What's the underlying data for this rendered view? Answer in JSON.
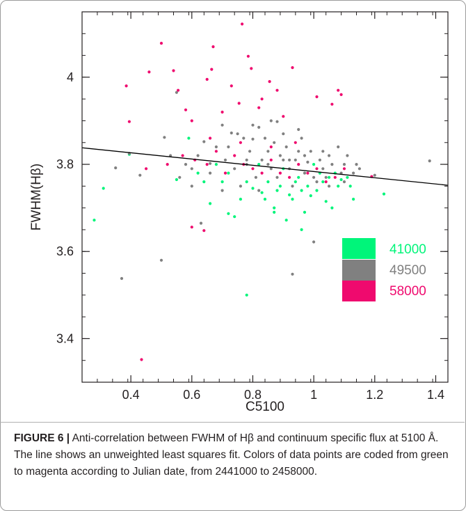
{
  "chart_data": {
    "type": "scatter",
    "xlabel": "C5100",
    "ylabel": "FWHM(Hβ)",
    "xlim": [
      0.24,
      1.44
    ],
    "ylim": [
      3.3,
      4.15
    ],
    "xticks": [
      "0.4",
      "0.6",
      "0.8",
      "1",
      "1.2",
      "1.4"
    ],
    "yticks": [
      "3.4",
      "3.6",
      "3.8",
      "4"
    ],
    "fit_line": {
      "x": [
        0.24,
        1.44
      ],
      "y": [
        3.838,
        3.752
      ]
    },
    "legend": {
      "placement": "lower-right",
      "entries": [
        {
          "label": "41000",
          "color": "#00f57a"
        },
        {
          "label": "49500",
          "color": "#808080"
        },
        {
          "label": "58000",
          "color": "#ef0a6e"
        }
      ]
    },
    "series": [
      {
        "color": "#00f57a",
        "points": [
          [
            0.28,
            3.672
          ],
          [
            0.31,
            3.745
          ],
          [
            0.395,
            3.823
          ],
          [
            0.55,
            3.765
          ],
          [
            0.59,
            3.86
          ],
          [
            0.72,
            3.687
          ],
          [
            0.78,
            3.5
          ],
          [
            0.83,
            3.735
          ],
          [
            0.87,
            3.69
          ],
          [
            0.91,
            3.672
          ],
          [
            0.96,
            3.65
          ],
          [
            0.99,
            3.728
          ],
          [
            1.04,
            3.715
          ],
          [
            1.09,
            3.765
          ],
          [
            1.13,
            3.72
          ],
          [
            1.23,
            3.732
          ],
          [
            0.66,
            3.71
          ],
          [
            0.74,
            3.68
          ],
          [
            0.76,
            3.72
          ],
          [
            0.8,
            3.745
          ],
          [
            0.85,
            3.76
          ],
          [
            0.88,
            3.74
          ],
          [
            0.93,
            3.72
          ],
          [
            0.95,
            3.77
          ],
          [
            0.97,
            3.69
          ],
          [
            1.01,
            3.74
          ],
          [
            1.06,
            3.7
          ],
          [
            1.08,
            3.75
          ],
          [
            1.11,
            3.77
          ],
          [
            0.7,
            3.76
          ],
          [
            0.68,
            3.8
          ],
          [
            0.72,
            3.78
          ],
          [
            0.82,
            3.8
          ],
          [
            0.9,
            3.79
          ],
          [
            0.94,
            3.76
          ],
          [
            1.02,
            3.78
          ],
          [
            1.05,
            3.77
          ],
          [
            0.62,
            3.78
          ],
          [
            0.64,
            3.76
          ],
          [
            0.87,
            3.7
          ],
          [
            0.92,
            3.73
          ],
          [
            0.98,
            3.75
          ],
          [
            1.0,
            3.8
          ],
          [
            1.03,
            3.76
          ],
          [
            0.78,
            3.76
          ],
          [
            0.84,
            3.72
          ],
          [
            0.89,
            3.75
          ],
          [
            0.96,
            3.74
          ],
          [
            1.07,
            3.78
          ],
          [
            1.12,
            3.75
          ]
        ]
      },
      {
        "color": "#808080",
        "points": [
          [
            0.35,
            3.792
          ],
          [
            0.37,
            3.538
          ],
          [
            0.395,
            3.825
          ],
          [
            0.43,
            3.775
          ],
          [
            0.5,
            3.58
          ],
          [
            0.51,
            3.862
          ],
          [
            0.55,
            3.965
          ],
          [
            0.63,
            3.665
          ],
          [
            0.64,
            3.852
          ],
          [
            0.66,
            3.802
          ],
          [
            0.7,
            3.89
          ],
          [
            0.73,
            3.872
          ],
          [
            0.78,
            3.8
          ],
          [
            0.8,
            3.858
          ],
          [
            0.82,
            3.885
          ],
          [
            0.85,
            3.83
          ],
          [
            0.88,
            3.898
          ],
          [
            0.9,
            3.81
          ],
          [
            0.93,
            3.548
          ],
          [
            0.95,
            3.83
          ],
          [
            0.98,
            3.805
          ],
          [
            1.0,
            3.622
          ],
          [
            1.03,
            3.79
          ],
          [
            1.05,
            3.82
          ],
          [
            1.1,
            3.8
          ],
          [
            1.15,
            3.79
          ],
          [
            1.2,
            3.775
          ],
          [
            1.38,
            3.808
          ],
          [
            0.6,
            3.79
          ],
          [
            0.62,
            3.82
          ],
          [
            0.68,
            3.84
          ],
          [
            0.71,
            3.81
          ],
          [
            0.74,
            3.79
          ],
          [
            0.77,
            3.86
          ],
          [
            0.79,
            3.83
          ],
          [
            0.81,
            3.77
          ],
          [
            0.83,
            3.81
          ],
          [
            0.84,
            3.86
          ],
          [
            0.86,
            3.79
          ],
          [
            0.87,
            3.85
          ],
          [
            0.89,
            3.82
          ],
          [
            0.91,
            3.84
          ],
          [
            0.92,
            3.79
          ],
          [
            0.94,
            3.81
          ],
          [
            0.96,
            3.86
          ],
          [
            0.97,
            3.78
          ],
          [
            0.99,
            3.83
          ],
          [
            1.01,
            3.76
          ],
          [
            1.02,
            3.81
          ],
          [
            1.04,
            3.77
          ],
          [
            1.06,
            3.8
          ],
          [
            1.08,
            3.84
          ],
          [
            1.09,
            3.78
          ],
          [
            1.11,
            3.82
          ],
          [
            1.13,
            3.78
          ],
          [
            1.14,
            3.8
          ],
          [
            0.75,
            3.87
          ],
          [
            0.8,
            3.89
          ],
          [
            0.86,
            3.9
          ],
          [
            0.9,
            3.87
          ],
          [
            0.95,
            3.88
          ],
          [
            0.72,
            3.84
          ],
          [
            0.66,
            3.78
          ],
          [
            0.58,
            3.8
          ],
          [
            0.56,
            3.77
          ],
          [
            0.53,
            3.82
          ],
          [
            0.6,
            3.75
          ],
          [
            0.7,
            3.74
          ],
          [
            0.76,
            3.75
          ],
          [
            0.82,
            3.74
          ],
          [
            0.88,
            3.77
          ],
          [
            0.93,
            3.75
          ],
          [
            1.0,
            3.77
          ],
          [
            1.05,
            3.75
          ],
          [
            1.1,
            3.76
          ],
          [
            0.78,
            3.81
          ],
          [
            0.85,
            3.8
          ],
          [
            0.92,
            3.81
          ],
          [
            0.97,
            3.82
          ],
          [
            1.03,
            3.83
          ]
        ]
      },
      {
        "color": "#ef0a6e",
        "points": [
          [
            0.385,
            3.98
          ],
          [
            0.395,
            3.898
          ],
          [
            0.435,
            3.352
          ],
          [
            0.46,
            4.012
          ],
          [
            0.5,
            4.078
          ],
          [
            0.54,
            4.015
          ],
          [
            0.555,
            3.97
          ],
          [
            0.58,
            3.925
          ],
          [
            0.6,
            3.656
          ],
          [
            0.64,
            3.648
          ],
          [
            0.65,
            3.995
          ],
          [
            0.665,
            4.018
          ],
          [
            0.67,
            4.07
          ],
          [
            0.73,
            3.98
          ],
          [
            0.755,
            3.94
          ],
          [
            0.765,
            4.122
          ],
          [
            0.785,
            4.048
          ],
          [
            0.795,
            4.02
          ],
          [
            0.83,
            3.95
          ],
          [
            0.855,
            3.99
          ],
          [
            0.88,
            3.97
          ],
          [
            0.93,
            4.022
          ],
          [
            1.01,
            3.955
          ],
          [
            1.06,
            3.938
          ],
          [
            1.08,
            3.97
          ],
          [
            1.09,
            3.96
          ],
          [
            1.19,
            3.772
          ],
          [
            0.45,
            3.79
          ],
          [
            0.52,
            3.8
          ],
          [
            0.57,
            3.82
          ],
          [
            0.61,
            3.81
          ],
          [
            0.65,
            3.8
          ],
          [
            0.68,
            3.83
          ],
          [
            0.71,
            3.78
          ],
          [
            0.74,
            3.82
          ],
          [
            0.77,
            3.8
          ],
          [
            0.8,
            3.79
          ],
          [
            0.83,
            3.78
          ],
          [
            0.86,
            3.81
          ],
          [
            0.89,
            3.78
          ],
          [
            0.92,
            3.77
          ],
          [
            0.95,
            3.8
          ],
          [
            0.98,
            3.78
          ],
          [
            1.01,
            3.79
          ],
          [
            1.04,
            3.76
          ],
          [
            1.07,
            3.77
          ],
          [
            1.1,
            3.79
          ],
          [
            0.6,
            3.9
          ],
          [
            0.7,
            3.92
          ],
          [
            0.82,
            3.93
          ],
          [
            0.9,
            3.91
          ],
          [
            0.66,
            3.86
          ],
          [
            0.76,
            3.85
          ],
          [
            0.86,
            3.84
          ],
          [
            0.94,
            3.85
          ]
        ]
      }
    ]
  },
  "caption": {
    "label": "FIGURE 6 |",
    "text": " Anti-correlation between FWHM of Hβ and continuum specific flux at 5100 Å. The line shows an unweighted least squares fit. Colors of data points are coded from green to magenta according to Julian date, from 2441000 to 2458000."
  }
}
